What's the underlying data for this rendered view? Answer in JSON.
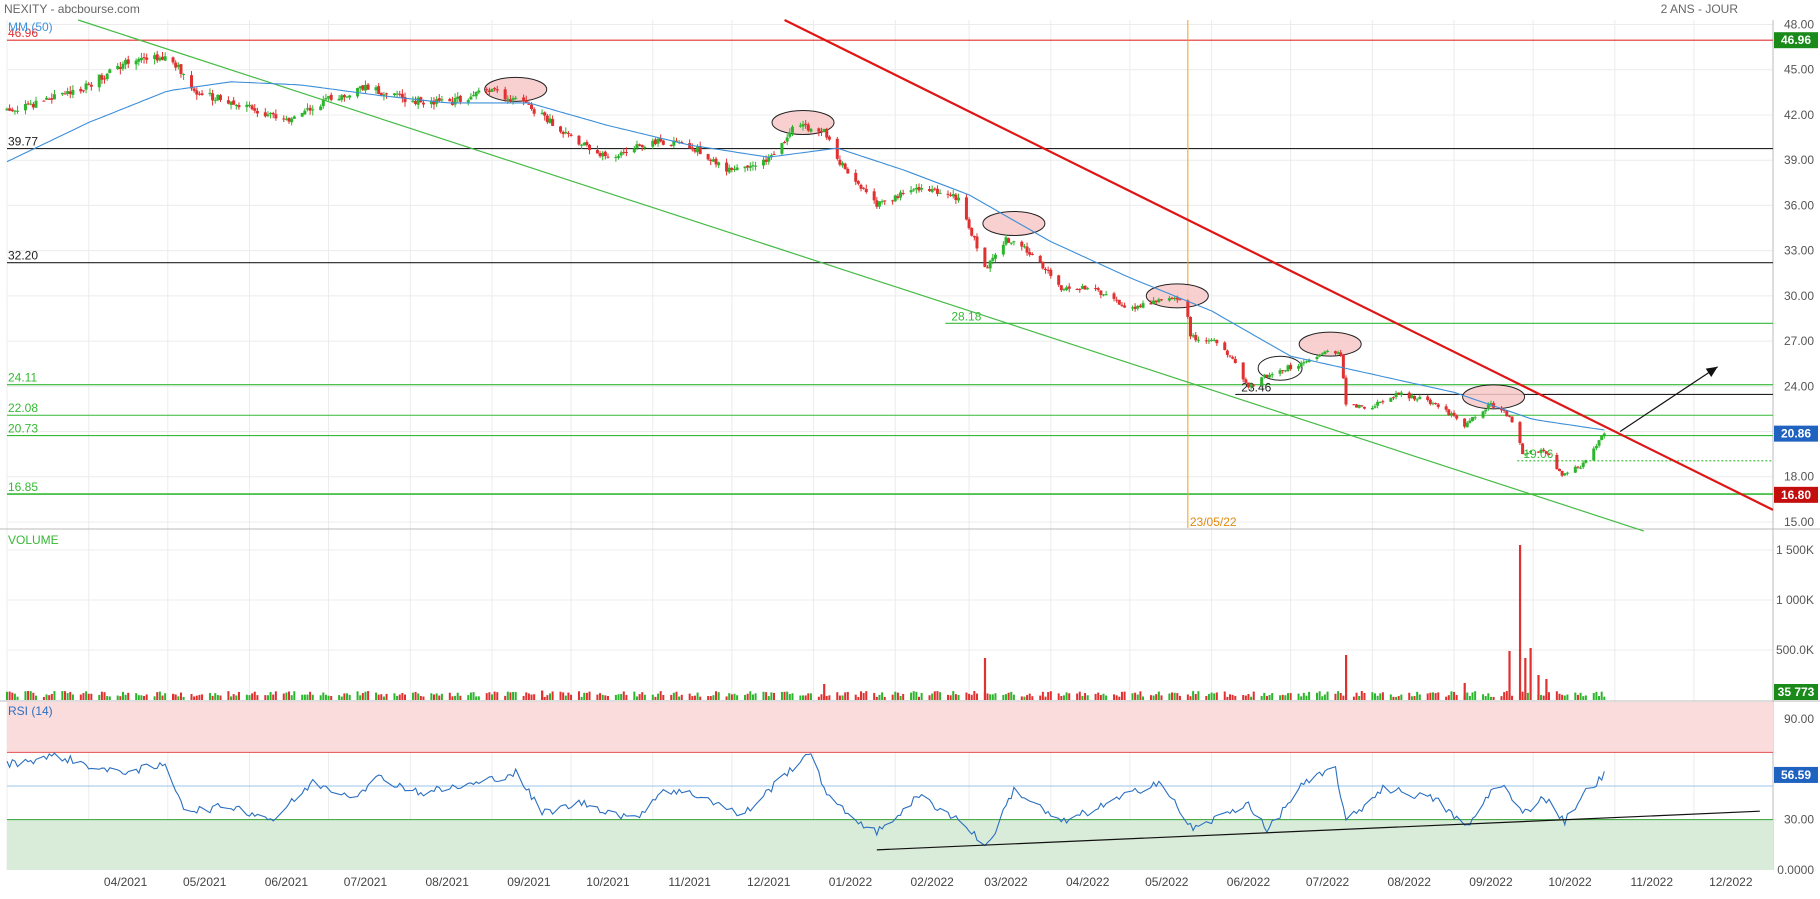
{
  "header": {
    "title": "NEXITY - abcbourse.com",
    "period": "2 ANS - JOUR"
  },
  "colors": {
    "up": "#2db52d",
    "down": "#e03030",
    "ma": "#3d8fd8",
    "rsi": "#2a6fc0",
    "trend_red": "#e01515",
    "channel_green": "#44bb44",
    "support_green": "#35b935",
    "resistance_black": "#222222",
    "vline_orange": "#f0a020",
    "rsi_overbought_zone": "#fbdcdc",
    "rsi_oversold_zone": "#d9ecd9",
    "ellipse_fill": "#f7c8c8",
    "badge_green": "#1a8a1a",
    "badge_blue": "#1f62c0",
    "badge_red": "#c40d0d"
  },
  "chart_data": [
    {
      "type": "candlestick",
      "title": "NEXITY - abcbourse.com",
      "subtitle": "2 ANS - JOUR",
      "ma_label": "MM (50)",
      "y_ticks": [
        "48.00",
        "45.00",
        "42.00",
        "39.00",
        "36.00",
        "33.00",
        "30.00",
        "27.00",
        "24.00",
        "21.00",
        "18.00",
        "15.00"
      ],
      "ylim": [
        14.6,
        48.3
      ],
      "x_ticks": [
        "04/2021",
        "05/2021",
        "06/2021",
        "07/2021",
        "08/2021",
        "09/2021",
        "10/2021",
        "11/2021",
        "12/2021",
        "01/2022",
        "02/2022",
        "03/2022",
        "04/2022",
        "05/2022",
        "06/2022",
        "07/2022",
        "08/2022",
        "09/2022",
        "10/2022",
        "11/2022",
        "12/2022"
      ],
      "x_start": "2021-03-01",
      "x_end": "2022-12-31",
      "last_date": "2022-10-28",
      "price_path": [
        [
          "2021-03-01",
          42.3
        ],
        [
          "2021-03-15",
          42.9
        ],
        [
          "2021-04-01",
          44.0
        ],
        [
          "2021-04-15",
          45.5
        ],
        [
          "2021-04-28",
          45.8
        ],
        [
          "2021-05-05",
          45.2
        ],
        [
          "2021-05-10",
          43.6
        ],
        [
          "2021-06-01",
          42.5
        ],
        [
          "2021-06-15",
          41.5
        ],
        [
          "2021-07-01",
          43.0
        ],
        [
          "2021-07-15",
          43.8
        ],
        [
          "2021-08-01",
          43.0
        ],
        [
          "2021-08-15",
          42.8
        ],
        [
          "2021-09-01",
          43.6
        ],
        [
          "2021-09-10",
          43.0
        ],
        [
          "2021-09-20",
          42.0
        ],
        [
          "2021-10-01",
          40.5
        ],
        [
          "2021-10-15",
          39.2
        ],
        [
          "2021-11-01",
          40.3
        ],
        [
          "2021-11-15",
          40.0
        ],
        [
          "2021-12-01",
          38.2
        ],
        [
          "2021-12-15",
          39.0
        ],
        [
          "2021-12-25",
          41.3
        ],
        [
          "2022-01-05",
          41.0
        ],
        [
          "2022-01-10",
          39.0
        ],
        [
          "2022-01-25",
          36.0
        ],
        [
          "2022-02-10",
          37.2
        ],
        [
          "2022-02-25",
          36.5
        ],
        [
          "2022-03-07",
          31.8
        ],
        [
          "2022-03-15",
          33.8
        ],
        [
          "2022-03-25",
          32.8
        ],
        [
          "2022-04-05",
          30.4
        ],
        [
          "2022-04-15",
          30.6
        ],
        [
          "2022-04-30",
          29.2
        ],
        [
          "2022-05-12",
          29.6
        ],
        [
          "2022-05-22",
          29.8
        ],
        [
          "2022-05-24",
          27.3
        ],
        [
          "2022-06-05",
          26.8
        ],
        [
          "2022-06-15",
          24.0
        ],
        [
          "2022-06-25",
          25.0
        ],
        [
          "2022-07-05",
          25.5
        ],
        [
          "2022-07-15",
          26.5
        ],
        [
          "2022-07-20",
          26.2
        ],
        [
          "2022-07-22",
          22.8
        ],
        [
          "2022-08-01",
          22.6
        ],
        [
          "2022-08-10",
          23.5
        ],
        [
          "2022-08-25",
          22.9
        ],
        [
          "2022-09-05",
          21.5
        ],
        [
          "2022-09-15",
          22.8
        ],
        [
          "2022-09-22",
          22.0
        ],
        [
          "2022-09-27",
          19.6
        ],
        [
          "2022-10-05",
          19.8
        ],
        [
          "2022-10-12",
          18.0
        ],
        [
          "2022-10-20",
          18.8
        ],
        [
          "2022-10-28",
          20.86
        ]
      ],
      "ma_path": [
        [
          "2021-03-01",
          38.9
        ],
        [
          "2021-04-01",
          41.5
        ],
        [
          "2021-05-01",
          43.6
        ],
        [
          "2021-05-25",
          44.2
        ],
        [
          "2021-06-20",
          44.0
        ],
        [
          "2021-07-20",
          43.3
        ],
        [
          "2021-08-15",
          42.8
        ],
        [
          "2021-09-15",
          42.8
        ],
        [
          "2021-10-15",
          41.3
        ],
        [
          "2021-11-15",
          40.0
        ],
        [
          "2021-12-15",
          39.2
        ],
        [
          "2022-01-10",
          39.8
        ],
        [
          "2022-02-05",
          38.3
        ],
        [
          "2022-03-01",
          36.7
        ],
        [
          "2022-04-01",
          33.6
        ],
        [
          "2022-05-01",
          31.2
        ],
        [
          "2022-06-01",
          29.0
        ],
        [
          "2022-07-01",
          26.0
        ],
        [
          "2022-08-01",
          24.8
        ],
        [
          "2022-09-01",
          23.6
        ],
        [
          "2022-10-01",
          21.8
        ],
        [
          "2022-10-28",
          21.1
        ]
      ],
      "horizontal_levels": [
        {
          "value": 46.96,
          "label": "46.96",
          "color": "#e03030"
        },
        {
          "value": 39.77,
          "label": "39.77",
          "color": "#222222"
        },
        {
          "value": 32.2,
          "label": "32.20",
          "color": "#222222"
        },
        {
          "value": 28.18,
          "label": "28.18",
          "color": "#35b935",
          "from": "2022-02-20"
        },
        {
          "value": 24.11,
          "label": "24.11",
          "color": "#35b935"
        },
        {
          "value": 23.46,
          "label": "23.46",
          "color": "#222222",
          "from": "2022-06-10",
          "label_at_from": true
        },
        {
          "value": 22.08,
          "label": "22.08",
          "color": "#35b935"
        },
        {
          "value": 20.73,
          "label": "20.73",
          "color": "#35b935"
        },
        {
          "value": 19.06,
          "label": "19.06",
          "color": "#35b935",
          "from": "2022-09-25",
          "dotted": true,
          "label_at_from": true
        },
        {
          "value": 16.85,
          "label": "16.85",
          "color": "#35b935"
        }
      ],
      "trendlines": [
        {
          "from": [
            "2021-12-21",
            48.3
          ],
          "to": [
            "2022-12-31",
            15.8
          ],
          "color": "#e01515",
          "width": 2.2
        },
        {
          "from": [
            "2021-03-28",
            48.3
          ],
          "to": [
            "2022-11-12",
            14.4
          ],
          "color": "#44bb44",
          "width": 1.2
        }
      ],
      "vertical_marker": {
        "date": "2022-05-23",
        "label": "23/05/22"
      },
      "ellipses": [
        {
          "date": "2021-09-10",
          "value": 43.7
        },
        {
          "date": "2021-12-28",
          "value": 41.5
        },
        {
          "date": "2022-03-18",
          "value": 34.8
        },
        {
          "date": "2022-05-19",
          "value": 30.0
        },
        {
          "date": "2022-06-27",
          "value": 25.2,
          "hollow": true
        },
        {
          "date": "2022-07-16",
          "value": 26.8
        },
        {
          "date": "2022-09-16",
          "value": 23.3
        }
      ],
      "arrow": {
        "from": [
          "2022-11-03",
          21.0
        ],
        "to": [
          "2022-12-10",
          25.3
        ]
      },
      "badges": [
        {
          "value": 46.96,
          "label": "46.96",
          "color": "#1a8a1a"
        },
        {
          "value": 20.86,
          "label": "20.86",
          "color": "#1f62c0"
        },
        {
          "value": 16.8,
          "label": "16.80",
          "color": "#c40d0d"
        }
      ]
    },
    {
      "type": "bar",
      "title": "VOLUME",
      "y_ticks": [
        "1 500K",
        "1 000K",
        "500.0K"
      ],
      "ylim": [
        0,
        1700000
      ],
      "last_value": "35 773",
      "spikes": [
        [
          "2021-05-03",
          62000
        ],
        [
          "2021-09-20",
          95000
        ],
        [
          "2022-01-05",
          160000
        ],
        [
          "2022-03-07",
          420000
        ],
        [
          "2022-07-22",
          450000
        ],
        [
          "2022-09-05",
          170000
        ],
        [
          "2022-09-22",
          490000
        ],
        [
          "2022-09-26",
          1550000
        ],
        [
          "2022-09-28",
          420000
        ],
        [
          "2022-09-30",
          520000
        ],
        [
          "2022-10-03",
          250000
        ],
        [
          "2022-10-06",
          210000
        ]
      ]
    },
    {
      "type": "line",
      "title": "RSI (14)",
      "y_ticks": [
        "90.00",
        "30.00",
        "0.0000"
      ],
      "ylim": [
        0,
        100
      ],
      "overbought": 70,
      "oversold": 30,
      "midline": 50,
      "last_value": "56.59",
      "rsi_path": [
        [
          "2021-03-01",
          63
        ],
        [
          "2021-03-20",
          68
        ],
        [
          "2021-04-10",
          58
        ],
        [
          "2021-04-30",
          62
        ],
        [
          "2021-05-08",
          35
        ],
        [
          "2021-05-25",
          38
        ],
        [
          "2021-06-10",
          30
        ],
        [
          "2021-06-25",
          52
        ],
        [
          "2021-07-10",
          44
        ],
        [
          "2021-07-20",
          55
        ],
        [
          "2021-08-05",
          46
        ],
        [
          "2021-08-25",
          51
        ],
        [
          "2021-09-10",
          58
        ],
        [
          "2021-09-20",
          34
        ],
        [
          "2021-10-05",
          40
        ],
        [
          "2021-10-25",
          30
        ],
        [
          "2021-11-05",
          48
        ],
        [
          "2021-11-20",
          44
        ],
        [
          "2021-12-05",
          32
        ],
        [
          "2021-12-20",
          55
        ],
        [
          "2021-12-30",
          70
        ],
        [
          "2022-01-08",
          40
        ],
        [
          "2022-01-25",
          22
        ],
        [
          "2022-02-10",
          44
        ],
        [
          "2022-02-25",
          30
        ],
        [
          "2022-03-08",
          14
        ],
        [
          "2022-03-18",
          48
        ],
        [
          "2022-04-05",
          28
        ],
        [
          "2022-04-25",
          41
        ],
        [
          "2022-05-12",
          53
        ],
        [
          "2022-05-25",
          24
        ],
        [
          "2022-06-15",
          40
        ],
        [
          "2022-06-22",
          23
        ],
        [
          "2022-07-05",
          50
        ],
        [
          "2022-07-18",
          61
        ],
        [
          "2022-07-22",
          28
        ],
        [
          "2022-08-05",
          49
        ],
        [
          "2022-08-25",
          42
        ],
        [
          "2022-09-06",
          25
        ],
        [
          "2022-09-18",
          54
        ],
        [
          "2022-09-27",
          33
        ],
        [
          "2022-10-05",
          44
        ],
        [
          "2022-10-13",
          29
        ],
        [
          "2022-10-20",
          45
        ],
        [
          "2022-10-28",
          56.59
        ]
      ],
      "trendlines": [
        {
          "from": [
            "2022-01-25",
            12
          ],
          "to": [
            "2022-12-26",
            35
          ]
        }
      ]
    }
  ]
}
